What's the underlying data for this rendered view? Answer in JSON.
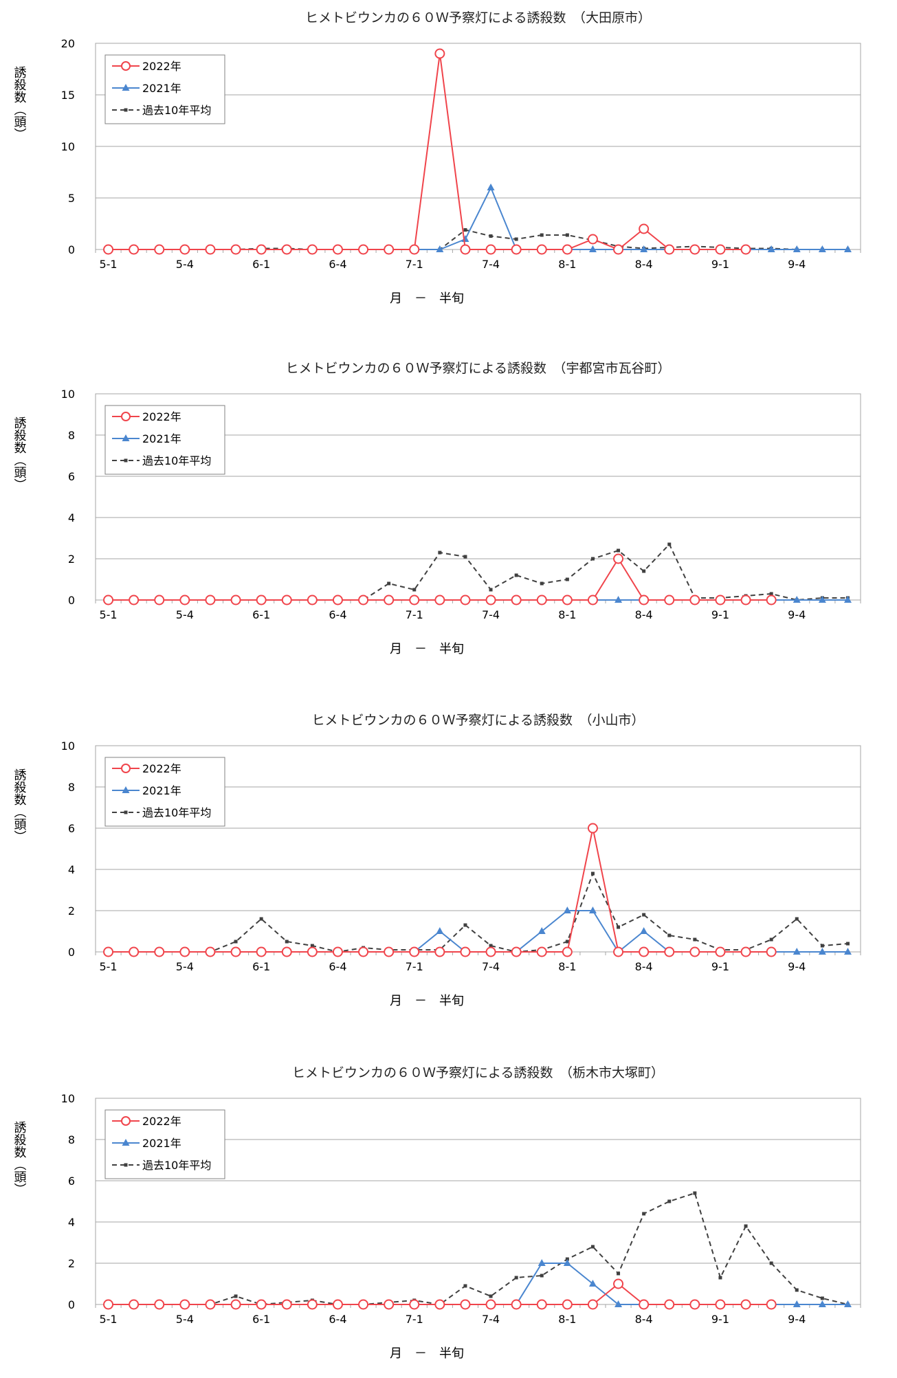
{
  "colors": {
    "s2022": "#f0444b",
    "s2021": "#4a86cf",
    "avg": "#404040",
    "grid": "#a6a6a6",
    "frame": "#a6a6a6"
  },
  "chart_data": [
    {
      "type": "line",
      "title": "ヒメトビウンカの６０Ｗ予察灯による誘殺数　（大田原市）",
      "xlabel": "月　－　半旬",
      "ylabel": "誘殺数（頭）",
      "ylim": [
        0,
        20
      ],
      "yticks": [
        "0",
        "5",
        "10",
        "15",
        "20"
      ],
      "xtick_labels": [
        "5-1",
        "5-4",
        "6-1",
        "6-4",
        "7-1",
        "7-4",
        "8-1",
        "8-4",
        "9-1",
        "9-4"
      ],
      "legend": [
        "2022年",
        "2021年",
        "過去10年平均"
      ],
      "grid": true,
      "series": [
        {
          "name": "2022年",
          "values": [
            0,
            0,
            0,
            0,
            0,
            0,
            0,
            0,
            0,
            0,
            0,
            0,
            0,
            19,
            0,
            0,
            0,
            0,
            0,
            1,
            0,
            2,
            0,
            0,
            0,
            0,
            null,
            null,
            null,
            null
          ]
        },
        {
          "name": "2021年",
          "values": [
            0,
            0,
            0,
            0,
            0,
            0,
            0,
            0,
            0,
            0,
            0,
            0,
            0,
            0,
            1,
            6,
            0,
            0,
            0,
            0,
            0,
            0,
            0,
            0,
            0,
            0,
            0,
            0,
            0,
            0
          ]
        },
        {
          "name": "過去10年平均",
          "values": [
            0,
            0,
            0,
            0,
            0,
            0,
            0.1,
            0.1,
            0,
            0,
            0,
            0,
            0,
            0,
            1.9,
            1.3,
            1.0,
            1.4,
            1.4,
            0.9,
            0.3,
            0.1,
            0.2,
            0.3,
            0.2,
            0.1,
            0.1,
            0,
            0,
            0
          ]
        }
      ]
    },
    {
      "type": "line",
      "title": "ヒメトビウンカの６０Ｗ予察灯による誘殺数　（宇都宮市瓦谷町）",
      "xlabel": "月　－　半旬",
      "ylabel": "誘殺数（頭）",
      "ylim": [
        0,
        10
      ],
      "yticks": [
        "0",
        "2",
        "4",
        "6",
        "8",
        "10"
      ],
      "xtick_labels": [
        "5-1",
        "5-4",
        "6-1",
        "6-4",
        "7-1",
        "7-4",
        "8-1",
        "8-4",
        "9-1",
        "9-4"
      ],
      "legend": [
        "2022年",
        "2021年",
        "過去10年平均"
      ],
      "grid": true,
      "series": [
        {
          "name": "2022年",
          "values": [
            0,
            0,
            0,
            0,
            0,
            0,
            0,
            0,
            0,
            0,
            0,
            0,
            0,
            0,
            0,
            0,
            0,
            0,
            0,
            0,
            2,
            0,
            0,
            0,
            0,
            0,
            0,
            null,
            null,
            null
          ]
        },
        {
          "name": "2021年",
          "values": [
            0,
            0,
            0,
            0,
            0,
            0,
            0,
            0,
            0,
            0,
            0,
            0,
            0,
            0,
            0,
            0,
            0,
            0,
            0,
            0,
            0,
            0,
            0,
            0,
            0,
            0,
            0,
            0,
            0,
            0
          ]
        },
        {
          "name": "過去10年平均",
          "values": [
            0,
            0,
            0,
            0,
            0,
            0,
            0,
            0,
            0,
            0,
            0,
            0.8,
            0.5,
            2.3,
            2.1,
            0.5,
            1.2,
            0.8,
            1.0,
            2.0,
            2.4,
            1.4,
            2.7,
            0.1,
            0.1,
            0.2,
            0.3,
            0,
            0.1,
            0.1
          ]
        }
      ]
    },
    {
      "type": "line",
      "title": "ヒメトビウンカの６０Ｗ予察灯による誘殺数　（小山市）",
      "xlabel": "月　－　半旬",
      "ylabel": "誘殺数（頭）",
      "ylim": [
        0,
        10
      ],
      "yticks": [
        "0",
        "2",
        "4",
        "6",
        "8",
        "10"
      ],
      "xtick_labels": [
        "5-1",
        "5-4",
        "6-1",
        "6-4",
        "7-1",
        "7-4",
        "8-1",
        "8-4",
        "9-1",
        "9-4"
      ],
      "legend": [
        "2022年",
        "2021年",
        "過去10年平均"
      ],
      "grid": true,
      "series": [
        {
          "name": "2022年",
          "values": [
            0,
            0,
            0,
            0,
            0,
            0,
            0,
            0,
            0,
            0,
            0,
            0,
            0,
            0,
            0,
            0,
            0,
            0,
            0,
            6,
            0,
            0,
            0,
            0,
            0,
            0,
            0,
            null,
            null,
            null
          ]
        },
        {
          "name": "2021年",
          "values": [
            0,
            0,
            0,
            0,
            0,
            0,
            0,
            0,
            0,
            0,
            0,
            0,
            0,
            1,
            0,
            0,
            0,
            1,
            2,
            2,
            0,
            1,
            0,
            0,
            0,
            0,
            0,
            0,
            0,
            0
          ]
        },
        {
          "name": "過去10年平均",
          "values": [
            0,
            0,
            0,
            0,
            0,
            0.5,
            1.6,
            0.5,
            0.3,
            0,
            0.2,
            0.1,
            0.1,
            0.1,
            1.3,
            0.3,
            0,
            0.1,
            0.5,
            3.8,
            1.2,
            1.8,
            0.8,
            0.6,
            0.1,
            0.1,
            0.6,
            1.6,
            0.3,
            0.4
          ]
        }
      ]
    },
    {
      "type": "line",
      "title": "ヒメトビウンカの６０Ｗ予察灯による誘殺数　（栃木市大塚町）",
      "xlabel": "月　－　半旬",
      "ylabel": "誘殺数（頭）",
      "ylim": [
        0,
        10
      ],
      "yticks": [
        "0",
        "2",
        "4",
        "6",
        "8",
        "10"
      ],
      "xtick_labels": [
        "5-1",
        "5-4",
        "6-1",
        "6-4",
        "7-1",
        "7-4",
        "8-1",
        "8-4",
        "9-1",
        "9-4"
      ],
      "legend": [
        "2022年",
        "2021年",
        "過去10年平均"
      ],
      "grid": true,
      "series": [
        {
          "name": "2022年",
          "values": [
            0,
            0,
            0,
            0,
            0,
            0,
            0,
            0,
            0,
            0,
            0,
            0,
            0,
            0,
            0,
            0,
            0,
            0,
            0,
            0,
            1,
            0,
            0,
            0,
            0,
            0,
            0,
            null,
            null,
            null
          ]
        },
        {
          "name": "2021年",
          "values": [
            0,
            0,
            0,
            0,
            0,
            0,
            0,
            0,
            0,
            0,
            0,
            0,
            0,
            0,
            0,
            0,
            0,
            2,
            2,
            1,
            0,
            0,
            0,
            0,
            0,
            0,
            0,
            0,
            0,
            0
          ]
        },
        {
          "name": "過去10年平均",
          "values": [
            0,
            0,
            0,
            0,
            0,
            0.4,
            0,
            0.1,
            0.2,
            0,
            0,
            0.1,
            0.2,
            0,
            0.9,
            0.4,
            1.3,
            1.4,
            2.2,
            2.8,
            1.5,
            4.4,
            5.0,
            5.4,
            1.3,
            3.8,
            2.0,
            0.7,
            0.3,
            0
          ]
        }
      ]
    }
  ]
}
